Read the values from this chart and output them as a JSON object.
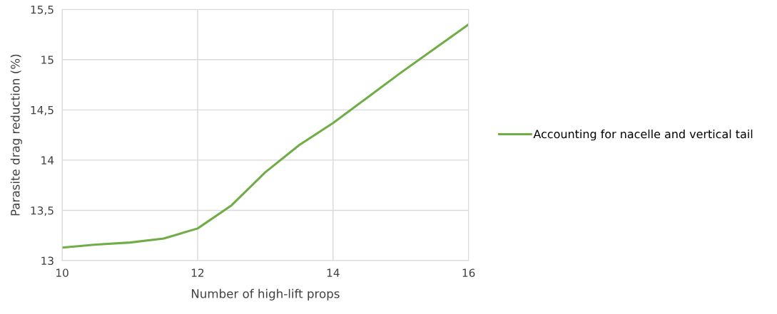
{
  "chart_data": {
    "type": "line",
    "xlabel": "Number of high-lift props",
    "ylabel": "Parasite drag reduction (%)",
    "xlim": [
      10,
      16
    ],
    "xticks": [
      10,
      12,
      14,
      16
    ],
    "ylim": [
      13,
      15.5
    ],
    "yticks": [
      13,
      {
        "value": 13.5,
        "label": "13,5"
      },
      14,
      {
        "value": 14.5,
        "label": "14,5"
      },
      15,
      {
        "value": 15.5,
        "label": "15,5"
      }
    ],
    "grid": true,
    "legend": "right",
    "marker": "none",
    "line_style": "solid",
    "series": [
      {
        "name": "Accounting for nacelle and vertical tail",
        "color": "#70ad47",
        "x": [
          10,
          10.5,
          11,
          11.5,
          12,
          12.5,
          13,
          13.5,
          14,
          14.5,
          15,
          15.5,
          16
        ],
        "values": [
          13.13,
          13.16,
          13.18,
          13.22,
          13.32,
          13.55,
          13.88,
          14.15,
          14.37,
          14.62,
          14.87,
          15.11,
          15.35
        ]
      }
    ]
  }
}
